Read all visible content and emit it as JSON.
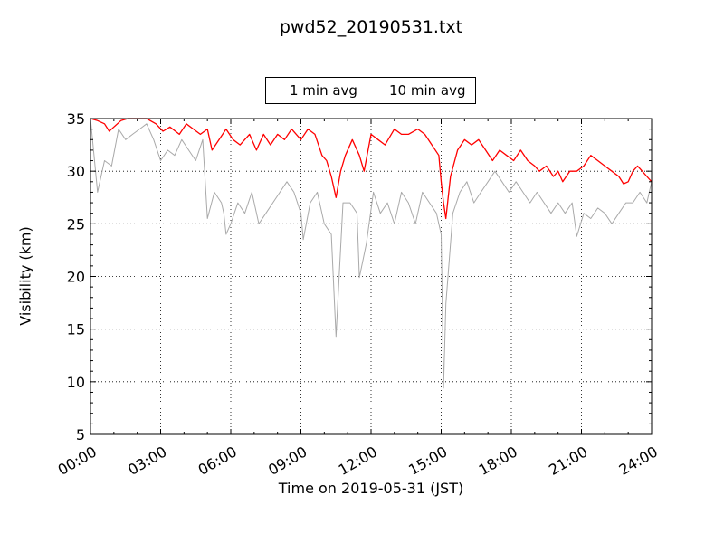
{
  "chart_data": {
    "type": "line",
    "title": "pwd52_20190531.txt",
    "xlabel": "Time on 2019-05-31 (JST)",
    "ylabel": "Visibility (km)",
    "x_range_hours": [
      0,
      24
    ],
    "ylim": [
      5,
      35
    ],
    "x_ticks": [
      "00:00",
      "03:00",
      "06:00",
      "09:00",
      "12:00",
      "15:00",
      "18:00",
      "21:00",
      "24:00"
    ],
    "y_ticks": [
      5,
      10,
      15,
      20,
      25,
      30,
      35
    ],
    "grid": true,
    "legend_position": "top-center",
    "series": [
      {
        "name": "1 min avg",
        "color": "#a9a9a9",
        "points": [
          [
            0.0,
            35
          ],
          [
            0.3,
            28
          ],
          [
            0.6,
            31
          ],
          [
            0.9,
            30.5
          ],
          [
            1.2,
            34
          ],
          [
            1.5,
            33
          ],
          [
            1.8,
            33.5
          ],
          [
            2.1,
            34
          ],
          [
            2.4,
            34.5
          ],
          [
            2.7,
            33
          ],
          [
            3.0,
            31
          ],
          [
            3.3,
            32
          ],
          [
            3.6,
            31.5
          ],
          [
            3.9,
            33
          ],
          [
            4.2,
            32
          ],
          [
            4.5,
            31
          ],
          [
            4.8,
            33
          ],
          [
            5.0,
            25.5
          ],
          [
            5.3,
            28
          ],
          [
            5.6,
            27
          ],
          [
            5.7,
            26
          ],
          [
            5.8,
            24
          ],
          [
            6.0,
            25
          ],
          [
            6.3,
            27
          ],
          [
            6.6,
            26
          ],
          [
            6.9,
            28
          ],
          [
            7.2,
            25
          ],
          [
            7.5,
            26
          ],
          [
            7.8,
            27
          ],
          [
            8.1,
            28
          ],
          [
            8.4,
            29
          ],
          [
            8.7,
            28
          ],
          [
            9.0,
            26
          ],
          [
            9.1,
            23.5
          ],
          [
            9.4,
            27
          ],
          [
            9.7,
            28
          ],
          [
            10.0,
            25
          ],
          [
            10.3,
            24
          ],
          [
            10.5,
            14.3
          ],
          [
            10.8,
            27
          ],
          [
            11.1,
            27
          ],
          [
            11.4,
            26
          ],
          [
            11.5,
            19.9
          ],
          [
            11.8,
            23.1
          ],
          [
            12.1,
            28
          ],
          [
            12.4,
            26
          ],
          [
            12.7,
            27
          ],
          [
            13.0,
            25
          ],
          [
            13.3,
            28
          ],
          [
            13.6,
            27
          ],
          [
            13.9,
            25
          ],
          [
            14.2,
            28
          ],
          [
            14.5,
            27
          ],
          [
            14.8,
            26
          ],
          [
            15.0,
            24
          ],
          [
            15.1,
            9.4
          ],
          [
            15.2,
            17.4
          ],
          [
            15.5,
            26
          ],
          [
            15.8,
            28
          ],
          [
            16.1,
            29
          ],
          [
            16.4,
            27
          ],
          [
            16.7,
            28
          ],
          [
            17.0,
            29
          ],
          [
            17.3,
            30
          ],
          [
            17.6,
            29
          ],
          [
            17.9,
            28
          ],
          [
            18.2,
            29
          ],
          [
            18.5,
            28
          ],
          [
            18.8,
            27
          ],
          [
            19.1,
            28
          ],
          [
            19.4,
            27
          ],
          [
            19.7,
            26
          ],
          [
            20.0,
            27
          ],
          [
            20.3,
            26
          ],
          [
            20.6,
            27
          ],
          [
            20.8,
            23.8
          ],
          [
            21.1,
            26
          ],
          [
            21.4,
            25.5
          ],
          [
            21.7,
            26.5
          ],
          [
            22.0,
            26
          ],
          [
            22.3,
            25
          ],
          [
            22.6,
            26
          ],
          [
            22.9,
            27
          ],
          [
            23.2,
            27
          ],
          [
            23.5,
            28
          ],
          [
            23.8,
            27
          ],
          [
            24.0,
            29
          ]
        ]
      },
      {
        "name": "10 min avg",
        "color": "#ff0000",
        "points": [
          [
            0.0,
            35
          ],
          [
            0.3,
            34.8
          ],
          [
            0.6,
            34.5
          ],
          [
            0.8,
            33.8
          ],
          [
            1.0,
            34.2
          ],
          [
            1.3,
            34.8
          ],
          [
            1.6,
            35
          ],
          [
            2.0,
            35
          ],
          [
            2.4,
            35
          ],
          [
            2.8,
            34.5
          ],
          [
            3.1,
            33.8
          ],
          [
            3.4,
            34.2
          ],
          [
            3.8,
            33.5
          ],
          [
            4.1,
            34.5
          ],
          [
            4.4,
            34
          ],
          [
            4.7,
            33.5
          ],
          [
            5.0,
            34
          ],
          [
            5.2,
            32
          ],
          [
            5.5,
            33
          ],
          [
            5.8,
            34
          ],
          [
            6.1,
            33
          ],
          [
            6.4,
            32.5
          ],
          [
            6.8,
            33.5
          ],
          [
            7.1,
            32
          ],
          [
            7.4,
            33.5
          ],
          [
            7.7,
            32.5
          ],
          [
            8.0,
            33.5
          ],
          [
            8.3,
            33
          ],
          [
            8.6,
            34
          ],
          [
            9.0,
            33
          ],
          [
            9.3,
            34
          ],
          [
            9.6,
            33.5
          ],
          [
            9.9,
            31.5
          ],
          [
            10.1,
            31
          ],
          [
            10.3,
            29.5
          ],
          [
            10.5,
            27.5
          ],
          [
            10.7,
            30
          ],
          [
            10.9,
            31.5
          ],
          [
            11.2,
            33
          ],
          [
            11.5,
            31.5
          ],
          [
            11.7,
            30
          ],
          [
            12.0,
            33.5
          ],
          [
            12.3,
            33
          ],
          [
            12.6,
            32.5
          ],
          [
            13.0,
            34
          ],
          [
            13.3,
            33.5
          ],
          [
            13.6,
            33.5
          ],
          [
            14.0,
            34
          ],
          [
            14.3,
            33.5
          ],
          [
            14.6,
            32.5
          ],
          [
            14.9,
            31.5
          ],
          [
            15.0,
            29
          ],
          [
            15.1,
            27
          ],
          [
            15.2,
            25.5
          ],
          [
            15.4,
            29.5
          ],
          [
            15.7,
            32
          ],
          [
            16.0,
            33
          ],
          [
            16.3,
            32.5
          ],
          [
            16.6,
            33
          ],
          [
            16.9,
            32
          ],
          [
            17.2,
            31
          ],
          [
            17.5,
            32
          ],
          [
            17.8,
            31.5
          ],
          [
            18.1,
            31
          ],
          [
            18.4,
            32
          ],
          [
            18.7,
            31
          ],
          [
            19.0,
            30.5
          ],
          [
            19.2,
            30
          ],
          [
            19.5,
            30.5
          ],
          [
            19.8,
            29.5
          ],
          [
            20.0,
            30
          ],
          [
            20.2,
            29
          ],
          [
            20.5,
            30
          ],
          [
            20.8,
            30
          ],
          [
            21.1,
            30.5
          ],
          [
            21.4,
            31.5
          ],
          [
            21.7,
            31
          ],
          [
            22.0,
            30.5
          ],
          [
            22.3,
            30
          ],
          [
            22.6,
            29.5
          ],
          [
            22.8,
            28.8
          ],
          [
            23.0,
            29
          ],
          [
            23.2,
            30
          ],
          [
            23.4,
            30.5
          ],
          [
            23.6,
            30
          ],
          [
            23.8,
            29.5
          ],
          [
            24.0,
            29
          ]
        ]
      }
    ]
  }
}
